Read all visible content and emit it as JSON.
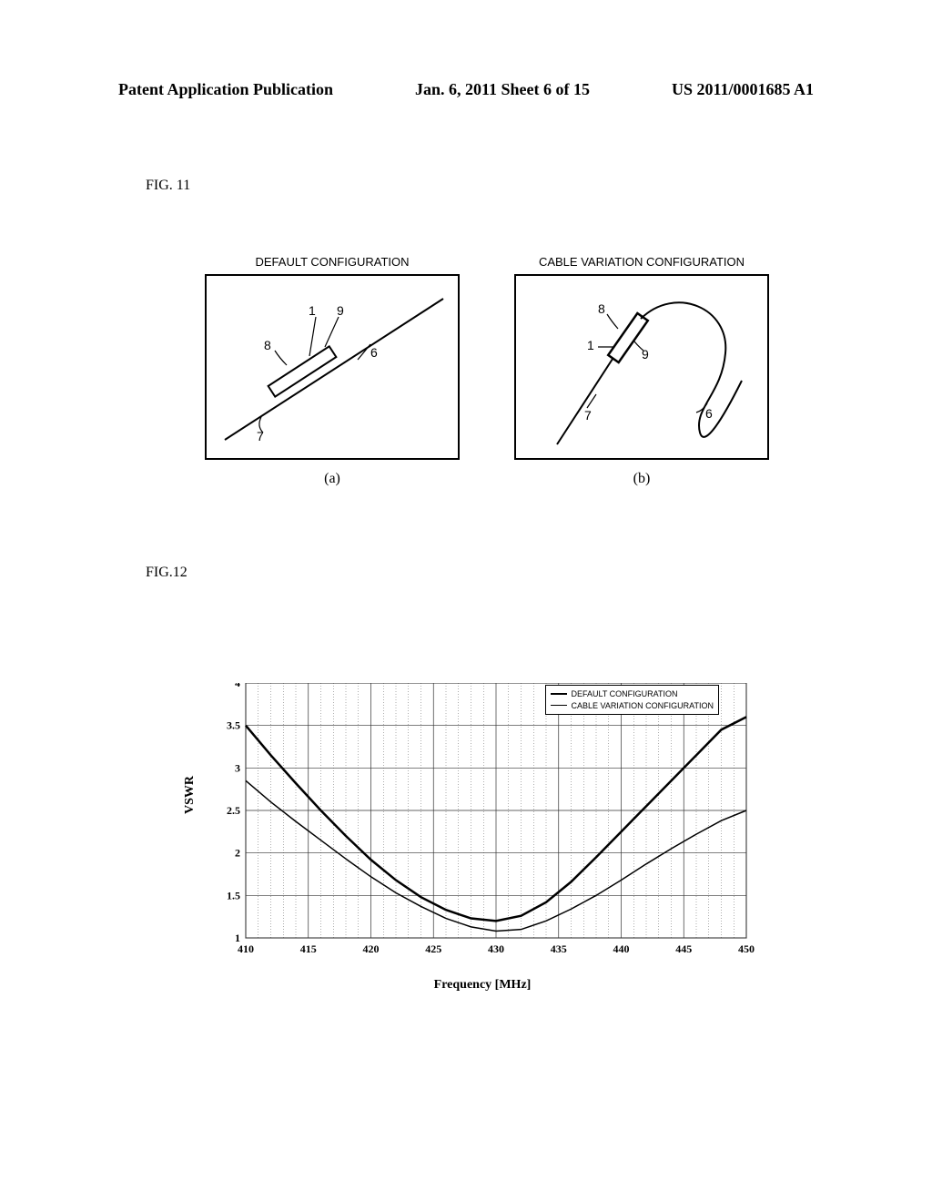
{
  "header": {
    "left": "Patent Application Publication",
    "center": "Jan. 6, 2011  Sheet 6 of 15",
    "right": "US 2011/0001685 A1"
  },
  "fig11": {
    "label": "FIG. 11",
    "diagrams": {
      "a": {
        "title": "DEFAULT CONFIGURATION",
        "sub": "(a)",
        "refs": {
          "r1": "1",
          "r6": "6",
          "r7": "7",
          "r8": "8",
          "r9": "9"
        }
      },
      "b": {
        "title": "CABLE VARIATION CONFIGURATION",
        "sub": "(b)",
        "refs": {
          "r1": "1",
          "r6": "6",
          "r7": "7",
          "r8": "8",
          "r9": "9"
        }
      }
    }
  },
  "fig12": {
    "label": "FIG.12",
    "chart": {
      "type": "line",
      "xlabel": "Frequency [MHz]",
      "ylabel": "VSWR",
      "xlim": [
        410,
        450
      ],
      "ylim": [
        1,
        4
      ],
      "xtick_step": 5,
      "ytick_step": 0.5,
      "xticks": [
        410,
        415,
        420,
        425,
        430,
        435,
        440,
        445,
        450
      ],
      "yticks": [
        1,
        1.5,
        2,
        2.5,
        3,
        3.5,
        4
      ],
      "grid_minor_x_per_major": 5,
      "grid_color": "#333333",
      "background_color": "#ffffff",
      "label_fontsize": 14,
      "tick_fontsize": 12,
      "line_width_default": 2.5,
      "line_width_variation": 1.5,
      "legend": {
        "items": [
          {
            "label": "DEFAULT CONFIGURATION",
            "style": "solid",
            "weight": "bold"
          },
          {
            "label": "CABLE VARIATION CONFIGURATION",
            "style": "solid",
            "weight": "thin"
          }
        ]
      },
      "series_default": {
        "color": "#000000",
        "x": [
          410,
          412,
          414,
          416,
          418,
          420,
          422,
          424,
          426,
          428,
          430,
          432,
          434,
          436,
          438,
          440,
          442,
          444,
          446,
          448,
          450
        ],
        "y": [
          3.5,
          3.15,
          2.82,
          2.5,
          2.2,
          1.92,
          1.68,
          1.48,
          1.33,
          1.23,
          1.2,
          1.26,
          1.42,
          1.66,
          1.95,
          2.25,
          2.55,
          2.85,
          3.15,
          3.45,
          3.6
        ]
      },
      "series_variation": {
        "color": "#000000",
        "x": [
          410,
          412,
          414,
          416,
          418,
          420,
          422,
          424,
          426,
          428,
          430,
          432,
          434,
          436,
          438,
          440,
          442,
          444,
          446,
          448,
          450
        ],
        "y": [
          2.85,
          2.6,
          2.37,
          2.15,
          1.93,
          1.72,
          1.53,
          1.37,
          1.23,
          1.13,
          1.08,
          1.1,
          1.2,
          1.34,
          1.5,
          1.68,
          1.87,
          2.05,
          2.22,
          2.38,
          2.5
        ]
      }
    }
  }
}
